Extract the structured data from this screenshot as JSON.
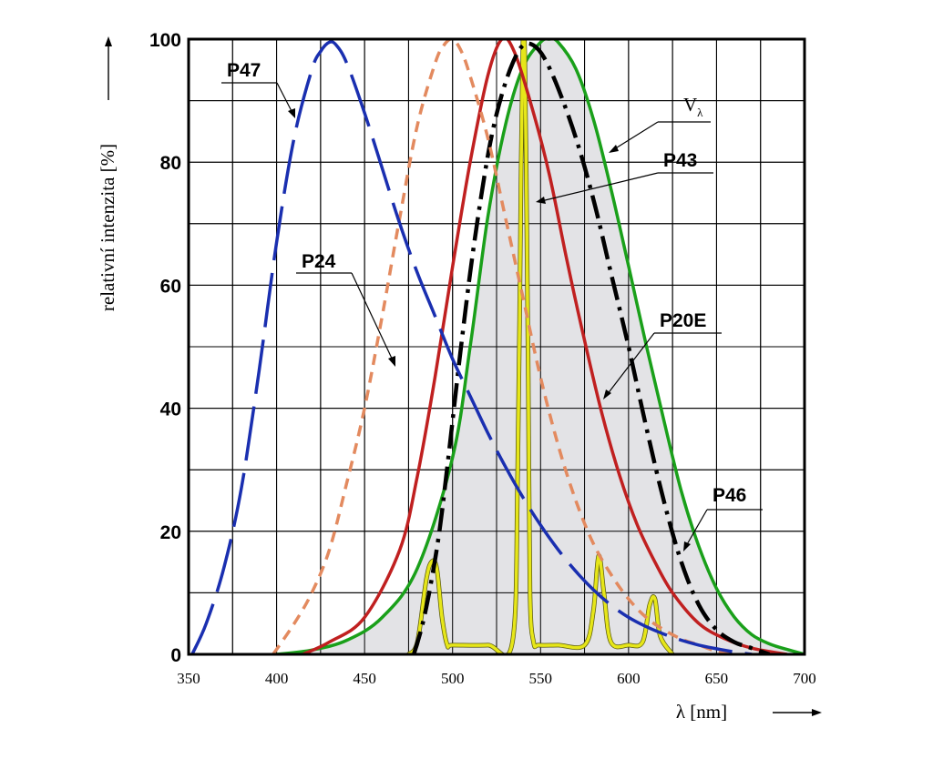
{
  "chart_data": {
    "type": "line",
    "title": "",
    "xlabel": "λ [nm]",
    "ylabel": "relativní intenzita [%]",
    "xlim": [
      350,
      700
    ],
    "ylim": [
      0,
      100
    ],
    "x_ticks": [
      "350",
      "400",
      "450",
      "500",
      "550",
      "600",
      "650",
      "700"
    ],
    "y_ticks": [
      "0",
      "20",
      "40",
      "60",
      "80",
      "100"
    ],
    "grid": true,
    "series": [
      {
        "name": "Vλ",
        "label": "V",
        "label_sub": "λ",
        "color": "#1aa01a",
        "style": "solid",
        "filled": true,
        "fill_color": "#e3e3e6",
        "x": [
          400,
          420,
          440,
          460,
          480,
          500,
          510,
          520,
          530,
          540,
          550,
          555,
          560,
          570,
          580,
          590,
          600,
          610,
          620,
          630,
          640,
          650,
          660,
          670,
          680,
          690,
          700
        ],
        "y": [
          0,
          0.7,
          2.3,
          6,
          14,
          32,
          50,
          71,
          86,
          95.4,
          99.5,
          100,
          99.5,
          95.2,
          87,
          75.7,
          63.1,
          50.3,
          38.1,
          26.5,
          17.5,
          10.7,
          6.1,
          3.2,
          1.7,
          0.8,
          0
        ]
      },
      {
        "name": "P43",
        "label": "P43",
        "color": "#e6e619",
        "style": "solid",
        "x": [
          475,
          480,
          485,
          488,
          491,
          494,
          497,
          500,
          520,
          534,
          537,
          539,
          540,
          541,
          542,
          543,
          544,
          546,
          549,
          560,
          575,
          580,
          583,
          586,
          590,
          600,
          608,
          612,
          615,
          618,
          625
        ],
        "y": [
          0,
          2,
          12,
          15,
          14,
          6,
          1.5,
          1.5,
          1.5,
          2,
          30,
          80,
          100,
          98,
          75,
          45,
          10,
          2,
          1.5,
          1.5,
          1.5,
          7,
          16,
          10,
          2,
          1.5,
          2,
          8,
          9,
          3,
          0
        ]
      },
      {
        "name": "P20E",
        "label": "P20E",
        "color": "#c02020",
        "style": "solid",
        "x": [
          415,
          430,
          450,
          470,
          480,
          490,
          500,
          510,
          520,
          528,
          535,
          545,
          555,
          565,
          575,
          585,
          595,
          605,
          615,
          625,
          640,
          655,
          670,
          690
        ],
        "y": [
          0,
          2,
          6,
          17,
          29,
          45,
          63,
          80,
          94,
          100,
          98,
          89,
          78,
          64,
          51,
          39,
          29,
          21,
          15,
          10,
          5,
          2.5,
          1,
          0
        ]
      },
      {
        "name": "P46",
        "label": "P46",
        "color": "#000000",
        "style": "dashdot",
        "x": [
          478,
          483,
          488,
          493,
          498,
          504,
          510,
          516,
          522,
          528,
          534,
          540,
          546,
          552,
          560,
          570,
          580,
          590,
          600,
          610,
          620,
          630,
          640,
          650,
          660,
          670,
          680
        ],
        "y": [
          0,
          5,
          12,
          21,
          33,
          48,
          62,
          74,
          84,
          91,
          96,
          99,
          99,
          97,
          92,
          84,
          74,
          62,
          50,
          37,
          25,
          15,
          8,
          4,
          2,
          1,
          0
        ]
      },
      {
        "name": "P24",
        "label": "P24",
        "color": "#e38a5f",
        "style": "dashed",
        "x": [
          398,
          410,
          420,
          430,
          440,
          450,
          460,
          470,
          480,
          490,
          495,
          500,
          505,
          510,
          520,
          530,
          540,
          550,
          560,
          570,
          580,
          590,
          600,
          610,
          620,
          630,
          640,
          650,
          660
        ],
        "y": [
          0,
          5,
          10,
          17,
          28,
          40,
          55,
          71,
          86,
          96,
          99,
          100,
          98,
          94,
          84,
          71,
          58,
          45,
          34,
          25,
          18,
          13,
          9,
          6,
          4,
          2.5,
          1.5,
          0.5,
          0
        ]
      },
      {
        "name": "P47",
        "label": "P47",
        "color": "#1a2fb0",
        "style": "longdash",
        "x": [
          352,
          360,
          370,
          380,
          390,
          400,
          410,
          420,
          425,
          430,
          434,
          440,
          450,
          460,
          470,
          480,
          490,
          500,
          510,
          520,
          530,
          540,
          550,
          560,
          570,
          580,
          590,
          600,
          610,
          620,
          630,
          640,
          650,
          660,
          670
        ],
        "y": [
          0,
          5,
          14,
          27,
          46,
          67,
          84,
          95,
          98,
          99.5,
          99,
          96,
          88,
          79,
          70,
          62,
          55,
          48,
          42,
          36,
          30.5,
          25.5,
          21,
          17,
          13.5,
          10.5,
          8,
          6,
          4.5,
          3.3,
          2.3,
          1.5,
          0.9,
          0.4,
          0
        ]
      }
    ]
  }
}
